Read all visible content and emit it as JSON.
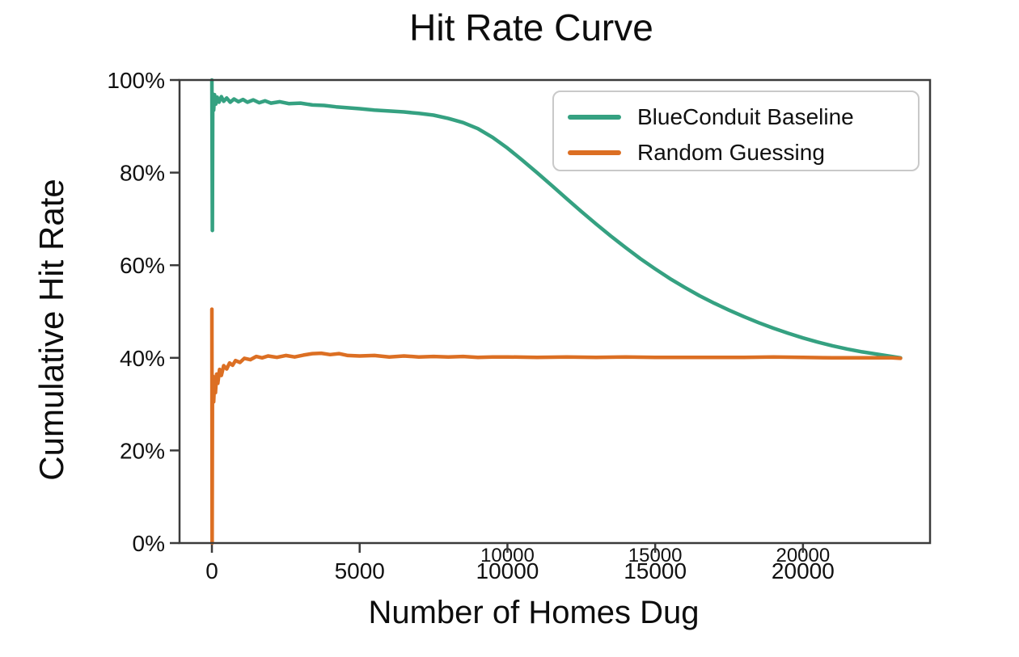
{
  "title": "Hit Rate Curve",
  "axes": {
    "x_label": "Number of Homes Dug",
    "y_label": "Cumulative Hit Rate",
    "x_ticks": [
      {
        "value": 0,
        "label": "0"
      },
      {
        "value": 5000,
        "label": "5000"
      },
      {
        "value": 10000,
        "label": "10000"
      },
      {
        "value": 15000,
        "label": "15000"
      },
      {
        "value": 20000,
        "label": "20000"
      }
    ],
    "y_ticks": [
      {
        "value": 0,
        "label": "0%"
      },
      {
        "value": 20,
        "label": "20%"
      },
      {
        "value": 40,
        "label": "40%"
      },
      {
        "value": 60,
        "label": "60%"
      },
      {
        "value": 80,
        "label": "80%"
      },
      {
        "value": 100,
        "label": "100%"
      }
    ],
    "ghost_x_ticks": [
      {
        "value": 10000,
        "label": "10000"
      },
      {
        "value": 15000,
        "label": "15000"
      },
      {
        "value": 20000,
        "label": "20000"
      }
    ]
  },
  "legend": {
    "items": [
      {
        "label": "BlueConduit Baseline",
        "color": "#35a181"
      },
      {
        "label": "Random Guessing",
        "color": "#dc6f23"
      }
    ]
  },
  "colors": {
    "spine": "#3b3b3b",
    "text": "#111111",
    "ghost_tick": "#c9c9c9",
    "background": "#ffffff"
  },
  "chart_data": {
    "type": "line",
    "title": "Hit Rate Curve",
    "xlabel": "Number of Homes Dug",
    "ylabel": "Cumulative Hit Rate",
    "xlim": [
      -1095,
      24300
    ],
    "ylim": [
      0,
      100
    ],
    "grid": false,
    "legend_position": "upper right",
    "x_tick_values": [
      0,
      5000,
      10000,
      15000,
      20000
    ],
    "y_tick_values": [
      0,
      20,
      40,
      60,
      80,
      100
    ],
    "y_unit": "percent",
    "series": [
      {
        "name": "BlueConduit Baseline",
        "color": "#35a181",
        "points": [
          [
            0,
            100
          ],
          [
            15,
            67.5
          ],
          [
            30,
            97
          ],
          [
            60,
            93.5
          ],
          [
            90,
            96.8
          ],
          [
            130,
            94.8
          ],
          [
            180,
            96.3
          ],
          [
            240,
            95.2
          ],
          [
            320,
            96.4
          ],
          [
            400,
            95.4
          ],
          [
            500,
            96.1
          ],
          [
            620,
            95.2
          ],
          [
            750,
            95.9
          ],
          [
            900,
            95.3
          ],
          [
            1050,
            95.8
          ],
          [
            1200,
            95.2
          ],
          [
            1400,
            95.7
          ],
          [
            1600,
            95.1
          ],
          [
            1800,
            95.5
          ],
          [
            2000,
            95.0
          ],
          [
            2300,
            95.3
          ],
          [
            2600,
            94.9
          ],
          [
            3000,
            95.0
          ],
          [
            3400,
            94.6
          ],
          [
            3800,
            94.5
          ],
          [
            4200,
            94.2
          ],
          [
            4600,
            94.0
          ],
          [
            5000,
            93.8
          ],
          [
            5500,
            93.5
          ],
          [
            6000,
            93.3
          ],
          [
            6500,
            93.1
          ],
          [
            7000,
            92.8
          ],
          [
            7500,
            92.4
          ],
          [
            8000,
            91.7
          ],
          [
            8500,
            90.8
          ],
          [
            9000,
            89.5
          ],
          [
            9500,
            87.6
          ],
          [
            10000,
            85.3
          ],
          [
            10500,
            82.7
          ],
          [
            11000,
            80.0
          ],
          [
            11500,
            77.2
          ],
          [
            12000,
            74.4
          ],
          [
            12500,
            71.6
          ],
          [
            13000,
            68.9
          ],
          [
            13500,
            66.3
          ],
          [
            14000,
            63.8
          ],
          [
            14500,
            61.4
          ],
          [
            15000,
            59.2
          ],
          [
            15500,
            57.1
          ],
          [
            16000,
            55.2
          ],
          [
            16500,
            53.4
          ],
          [
            17000,
            51.8
          ],
          [
            17500,
            50.3
          ],
          [
            18000,
            48.9
          ],
          [
            18500,
            47.6
          ],
          [
            19000,
            46.4
          ],
          [
            19500,
            45.3
          ],
          [
            20000,
            44.3
          ],
          [
            20500,
            43.4
          ],
          [
            21000,
            42.6
          ],
          [
            21500,
            41.9
          ],
          [
            22000,
            41.3
          ],
          [
            22500,
            40.8
          ],
          [
            23000,
            40.3
          ],
          [
            23300,
            40.0
          ]
        ]
      },
      {
        "name": "Random Guessing",
        "color": "#dc6f23",
        "points": [
          [
            0,
            50.5
          ],
          [
            8,
            0
          ],
          [
            20,
            31
          ],
          [
            40,
            36
          ],
          [
            60,
            30.5
          ],
          [
            90,
            35
          ],
          [
            120,
            32.5
          ],
          [
            160,
            36.5
          ],
          [
            200,
            34.5
          ],
          [
            260,
            37.5
          ],
          [
            320,
            36.2
          ],
          [
            400,
            38.3
          ],
          [
            500,
            37.6
          ],
          [
            600,
            38.9
          ],
          [
            700,
            38.4
          ],
          [
            800,
            39.4
          ],
          [
            950,
            39.0
          ],
          [
            1100,
            39.9
          ],
          [
            1300,
            39.6
          ],
          [
            1500,
            40.3
          ],
          [
            1700,
            40.0
          ],
          [
            1900,
            40.4
          ],
          [
            2200,
            40.1
          ],
          [
            2500,
            40.5
          ],
          [
            2800,
            40.2
          ],
          [
            3100,
            40.6
          ],
          [
            3400,
            40.9
          ],
          [
            3700,
            41.0
          ],
          [
            4000,
            40.7
          ],
          [
            4300,
            40.9
          ],
          [
            4600,
            40.5
          ],
          [
            5000,
            40.4
          ],
          [
            5500,
            40.5
          ],
          [
            6000,
            40.2
          ],
          [
            6500,
            40.4
          ],
          [
            7000,
            40.2
          ],
          [
            7500,
            40.3
          ],
          [
            8000,
            40.2
          ],
          [
            8500,
            40.3
          ],
          [
            9000,
            40.1
          ],
          [
            9500,
            40.2
          ],
          [
            10000,
            40.2
          ],
          [
            11000,
            40.1
          ],
          [
            12000,
            40.2
          ],
          [
            13000,
            40.1
          ],
          [
            14000,
            40.2
          ],
          [
            15000,
            40.1
          ],
          [
            16000,
            40.1
          ],
          [
            17000,
            40.1
          ],
          [
            18000,
            40.1
          ],
          [
            19000,
            40.2
          ],
          [
            20000,
            40.1
          ],
          [
            21000,
            40.0
          ],
          [
            22000,
            40.0
          ],
          [
            23000,
            40.0
          ],
          [
            23300,
            39.9
          ]
        ]
      }
    ]
  }
}
